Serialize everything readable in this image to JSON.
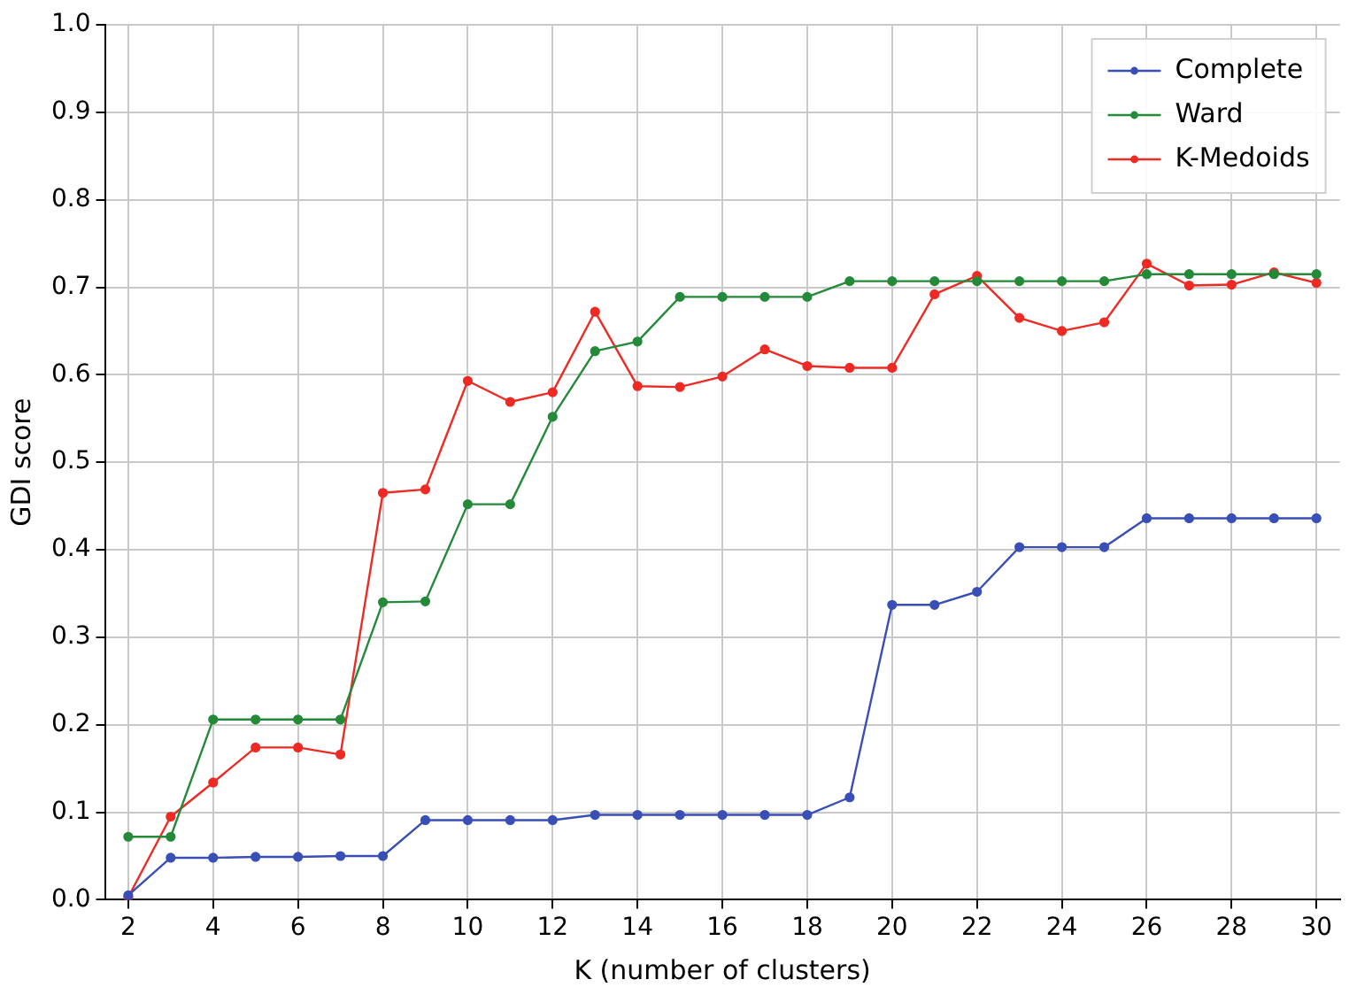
{
  "chart_data": {
    "type": "line",
    "xlabel": "K (number of clusters)",
    "ylabel": "GDI score",
    "x": [
      2,
      3,
      4,
      5,
      6,
      7,
      8,
      9,
      10,
      11,
      12,
      13,
      14,
      15,
      16,
      17,
      18,
      19,
      20,
      21,
      22,
      23,
      24,
      25,
      26,
      27,
      28,
      29,
      30
    ],
    "series": [
      {
        "name": "Complete",
        "color": "#3a4fb5",
        "values": [
          0.005,
          0.048,
          0.048,
          0.049,
          0.049,
          0.05,
          0.05,
          0.091,
          0.091,
          0.091,
          0.091,
          0.097,
          0.097,
          0.097,
          0.097,
          0.097,
          0.097,
          0.117,
          0.337,
          0.337,
          0.352,
          0.403,
          0.403,
          0.403,
          0.436,
          0.436,
          0.436,
          0.436,
          0.436
        ]
      },
      {
        "name": "Ward",
        "color": "#248a3a",
        "values": [
          0.072,
          0.072,
          0.206,
          0.206,
          0.206,
          0.206,
          0.34,
          0.341,
          0.452,
          0.452,
          0.552,
          0.627,
          0.638,
          0.689,
          0.689,
          0.689,
          0.689,
          0.707,
          0.707,
          0.707,
          0.707,
          0.707,
          0.707,
          0.707,
          0.715,
          0.715,
          0.715,
          0.715,
          0.715
        ]
      },
      {
        "name": "K-Medoids",
        "color": "#ee2a24",
        "values": [
          0.003,
          0.095,
          0.134,
          0.174,
          0.174,
          0.166,
          0.465,
          0.469,
          0.593,
          0.569,
          0.58,
          0.672,
          0.587,
          0.586,
          0.598,
          0.629,
          0.61,
          0.608,
          0.608,
          0.692,
          0.713,
          0.665,
          0.65,
          0.66,
          0.727,
          0.702,
          0.703,
          0.717,
          0.705
        ]
      }
    ],
    "xlim": [
      1.45,
      30.55
    ],
    "xticks": [
      2,
      4,
      6,
      8,
      10,
      12,
      14,
      16,
      18,
      20,
      22,
      24,
      26,
      28,
      30
    ],
    "ylim": [
      0,
      1
    ],
    "yticks": [
      {
        "value": 0,
        "label": "0.0"
      },
      0.1,
      0.2,
      0.3,
      0.4,
      0.5,
      0.6,
      0.7,
      0.8,
      0.9,
      {
        "value": 1,
        "label": "1.0"
      }
    ],
    "grid": true,
    "legend": "top right",
    "marker": "circle",
    "line_style": "solid"
  }
}
